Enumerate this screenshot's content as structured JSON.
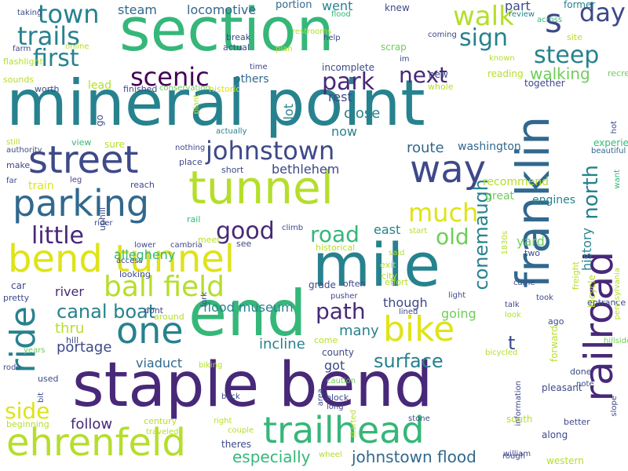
{
  "palette": {
    "dp": "#440154",
    "dv": "#482878",
    "in": "#3e4989",
    "bl": "#31688e",
    "tl": "#26828e",
    "tg": "#1f9e89",
    "gr": "#35b779",
    "lg": "#6ece58",
    "lm": "#b5de2b",
    "yl": "#dfe318"
  },
  "words": [
    {
      "t": "mineral point",
      "c": "tl"
    },
    {
      "t": "section",
      "c": "gr"
    },
    {
      "t": "staple bend",
      "c": "dv"
    },
    {
      "t": "franklin",
      "c": "bl"
    },
    {
      "t": "mile",
      "c": "tl"
    },
    {
      "t": "end",
      "c": "gr"
    },
    {
      "t": "tunnel",
      "c": "lm"
    },
    {
      "t": "bend tunnel",
      "c": "yl"
    },
    {
      "t": "railroad",
      "c": "dv"
    },
    {
      "t": "trailhead",
      "c": "gr"
    },
    {
      "t": "ehrenfeld",
      "c": "lm"
    },
    {
      "t": "street",
      "c": "in"
    },
    {
      "t": "parking",
      "c": "bl"
    },
    {
      "t": "way",
      "c": "in"
    },
    {
      "t": "johnstown",
      "c": "in"
    },
    {
      "t": "ball field",
      "c": "lm"
    },
    {
      "t": "bike",
      "c": "yl"
    },
    {
      "t": "one",
      "c": "tl"
    },
    {
      "t": "ride",
      "c": "tl"
    },
    {
      "t": "s",
      "c": "in"
    },
    {
      "t": "walk",
      "c": "lm"
    },
    {
      "t": "scenic",
      "c": "dp"
    },
    {
      "t": "town",
      "c": "tl"
    },
    {
      "t": "day",
      "c": "in"
    },
    {
      "t": "trails",
      "c": "tl"
    },
    {
      "t": "first",
      "c": "tl"
    },
    {
      "t": "sign",
      "c": "tl"
    },
    {
      "t": "steep",
      "c": "tl"
    },
    {
      "t": "park",
      "c": "dv"
    },
    {
      "t": "next",
      "c": "dv"
    },
    {
      "t": "much",
      "c": "yl"
    },
    {
      "t": "little",
      "c": "dv"
    },
    {
      "t": "good",
      "c": "dv"
    },
    {
      "t": "road",
      "c": "gr"
    },
    {
      "t": "old",
      "c": "lg"
    },
    {
      "t": "path",
      "c": "dv"
    },
    {
      "t": "conemaugh",
      "c": "tl"
    },
    {
      "t": "north",
      "c": "tl"
    },
    {
      "t": "surface",
      "c": "tl"
    },
    {
      "t": "side",
      "c": "yl"
    },
    {
      "t": "canal boat",
      "c": "tl"
    },
    {
      "t": "t",
      "c": "in"
    },
    {
      "t": "walking",
      "c": "lg"
    },
    {
      "t": "history",
      "c": "tl"
    },
    {
      "t": "steam",
      "c": "bl"
    },
    {
      "t": "locomotive",
      "c": "bl"
    },
    {
      "t": "johnstown flood",
      "c": "bl"
    },
    {
      "t": "especially",
      "c": "gr"
    },
    {
      "t": "allegheny",
      "c": "gr"
    },
    {
      "t": "river",
      "c": "dv"
    },
    {
      "t": "thru",
      "c": "lm"
    },
    {
      "t": "portage",
      "c": "in"
    },
    {
      "t": "viaduct",
      "c": "bl"
    },
    {
      "t": "incline",
      "c": "tl"
    },
    {
      "t": "follow",
      "c": "dv"
    },
    {
      "t": "got",
      "c": "in"
    },
    {
      "t": "many",
      "c": "tl"
    },
    {
      "t": "though",
      "c": "in"
    },
    {
      "t": "going",
      "c": "lg"
    },
    {
      "t": "yard",
      "c": "lg"
    },
    {
      "t": "east",
      "c": "tl"
    },
    {
      "t": "route",
      "c": "bl"
    },
    {
      "t": "washington",
      "c": "bl"
    },
    {
      "t": "bethlehem",
      "c": "in"
    },
    {
      "t": "close",
      "c": "tl"
    },
    {
      "t": "rest",
      "c": "in"
    },
    {
      "t": "now",
      "c": "tl"
    },
    {
      "t": "lot",
      "c": "tl"
    },
    {
      "t": "others",
      "c": "bl"
    },
    {
      "t": "part",
      "c": "in"
    },
    {
      "t": "went",
      "c": "tl"
    },
    {
      "t": "lead",
      "c": "lm"
    },
    {
      "t": "train",
      "c": "yl"
    },
    {
      "t": "flood museum",
      "c": "tl"
    },
    {
      "t": "engines",
      "c": "tl"
    },
    {
      "t": "great",
      "c": "lg"
    },
    {
      "t": "recommend",
      "c": "lm"
    },
    {
      "t": "portion",
      "c": "bl"
    },
    {
      "t": "flood",
      "c": "gr"
    },
    {
      "t": "knew",
      "c": "in"
    },
    {
      "t": "former",
      "c": "tl"
    },
    {
      "t": "review",
      "c": "tl"
    },
    {
      "t": "across",
      "c": "gr"
    },
    {
      "t": "site",
      "c": "lm"
    },
    {
      "t": "coming",
      "c": "in"
    },
    {
      "t": "known",
      "c": "lm"
    },
    {
      "t": "together",
      "c": "in"
    },
    {
      "t": "reading",
      "c": "lm"
    },
    {
      "t": "whole",
      "c": "lm"
    },
    {
      "t": "recreation",
      "c": "lg"
    },
    {
      "t": "hot",
      "c": "in"
    },
    {
      "t": "experience",
      "c": "gr"
    },
    {
      "t": "beautiful",
      "c": "bl"
    },
    {
      "t": "want",
      "c": "gr"
    },
    {
      "t": "scrap",
      "c": "lg"
    },
    {
      "t": "im",
      "c": "in"
    },
    {
      "t": "new",
      "c": "in"
    },
    {
      "t": "restrooms",
      "c": "lm"
    },
    {
      "t": "help",
      "c": "in"
    },
    {
      "t": "plan",
      "c": "lm"
    },
    {
      "t": "break",
      "c": "in"
    },
    {
      "t": "actual",
      "c": "in"
    },
    {
      "t": "time",
      "c": "in"
    },
    {
      "t": "incomplete",
      "c": "in"
    },
    {
      "t": "historic",
      "c": "yl"
    },
    {
      "t": "conservation",
      "c": "lg"
    },
    {
      "t": "finished",
      "c": "in"
    },
    {
      "t": "worth",
      "c": "in"
    },
    {
      "t": "sounds",
      "c": "lm"
    },
    {
      "t": "flashlight",
      "c": "lm"
    },
    {
      "t": "farm",
      "c": "in"
    },
    {
      "t": "online",
      "c": "lm"
    },
    {
      "t": "taking",
      "c": "in"
    },
    {
      "t": "go",
      "c": "in"
    },
    {
      "t": "plant",
      "c": "lm"
    },
    {
      "t": "actually",
      "c": "tl"
    },
    {
      "t": "short",
      "c": "in"
    },
    {
      "t": "nothing",
      "c": "in"
    },
    {
      "t": "place",
      "c": "in"
    },
    {
      "t": "view",
      "c": "gr"
    },
    {
      "t": "sure",
      "c": "lm"
    },
    {
      "t": "still",
      "c": "lm"
    },
    {
      "t": "authority",
      "c": "in"
    },
    {
      "t": "make",
      "c": "in"
    },
    {
      "t": "far",
      "c": "in"
    },
    {
      "t": "leg",
      "c": "in"
    },
    {
      "t": "reach",
      "c": "in"
    },
    {
      "t": "uphill",
      "c": "in"
    },
    {
      "t": "rail",
      "c": "gr"
    },
    {
      "t": "rider",
      "c": "in"
    },
    {
      "t": "lower",
      "c": "in"
    },
    {
      "t": "cambria",
      "c": "in"
    },
    {
      "t": "access",
      "c": "in"
    },
    {
      "t": "meet",
      "c": "lm"
    },
    {
      "t": "see",
      "c": "in"
    },
    {
      "t": "climb",
      "c": "in"
    },
    {
      "t": "grade",
      "c": "in"
    },
    {
      "t": "often",
      "c": "in"
    },
    {
      "t": "effort",
      "c": "lm"
    },
    {
      "t": "historical",
      "c": "lm"
    },
    {
      "t": "start",
      "c": "lm"
    },
    {
      "t": "said",
      "c": "lm"
    },
    {
      "t": "exit",
      "c": "lm"
    },
    {
      "t": "city",
      "c": "lm"
    },
    {
      "t": "pusher",
      "c": "in"
    },
    {
      "t": "lined",
      "c": "in"
    },
    {
      "t": "light",
      "c": "in"
    },
    {
      "t": "came",
      "c": "in"
    },
    {
      "t": "took",
      "c": "in"
    },
    {
      "t": "talk",
      "c": "in"
    },
    {
      "t": "look",
      "c": "lm"
    },
    {
      "t": "ago",
      "c": "in"
    },
    {
      "t": "two",
      "c": "in"
    },
    {
      "t": "freight",
      "c": "lm"
    },
    {
      "t": "bicycle",
      "c": "lm"
    },
    {
      "t": "entrance",
      "c": "in"
    },
    {
      "t": "1830s",
      "c": "lm"
    },
    {
      "t": "pennsylvania",
      "c": "lm"
    },
    {
      "t": "forward",
      "c": "lm"
    },
    {
      "t": "hillside",
      "c": "lg"
    },
    {
      "t": "done",
      "c": "in"
    },
    {
      "t": "note",
      "c": "in"
    },
    {
      "t": "slope",
      "c": "in"
    },
    {
      "t": "pleasant",
      "c": "in"
    },
    {
      "t": "south",
      "c": "lm"
    },
    {
      "t": "better",
      "c": "in"
    },
    {
      "t": "along",
      "c": "in"
    },
    {
      "t": "william",
      "c": "in"
    },
    {
      "t": "rough",
      "c": "in"
    },
    {
      "t": "western",
      "c": "lm"
    },
    {
      "t": "stone",
      "c": "in"
    },
    {
      "t": "information",
      "c": "in"
    },
    {
      "t": "bicycled",
      "c": "lm"
    },
    {
      "t": "come",
      "c": "lm"
    },
    {
      "t": "county",
      "c": "in"
    },
    {
      "t": "caution",
      "c": "lg"
    },
    {
      "t": "block",
      "c": "in"
    },
    {
      "t": "long",
      "c": "in"
    },
    {
      "t": "area",
      "c": "in"
    },
    {
      "t": "started",
      "c": "lm"
    },
    {
      "t": "wheel",
      "c": "lm"
    },
    {
      "t": "couple",
      "c": "lm"
    },
    {
      "t": "theres",
      "c": "in"
    },
    {
      "t": "right",
      "c": "lm"
    },
    {
      "t": "biking",
      "c": "lm"
    },
    {
      "t": "century",
      "c": "lm"
    },
    {
      "t": "traveled",
      "c": "lm"
    },
    {
      "t": "back",
      "c": "in"
    },
    {
      "t": "fork",
      "c": "in"
    },
    {
      "t": "dont",
      "c": "in"
    },
    {
      "t": "around",
      "c": "lm"
    },
    {
      "t": "looking",
      "c": "in"
    },
    {
      "t": "car",
      "c": "in"
    },
    {
      "t": "pretty",
      "c": "in"
    },
    {
      "t": "hill",
      "c": "in"
    },
    {
      "t": "years",
      "c": "lg"
    },
    {
      "t": "rode",
      "c": "in"
    },
    {
      "t": "used",
      "c": "in"
    },
    {
      "t": "bit",
      "c": "in"
    },
    {
      "t": "beginning",
      "c": "lm"
    },
    {
      "t": "unfinished",
      "c": "lm"
    }
  ]
}
